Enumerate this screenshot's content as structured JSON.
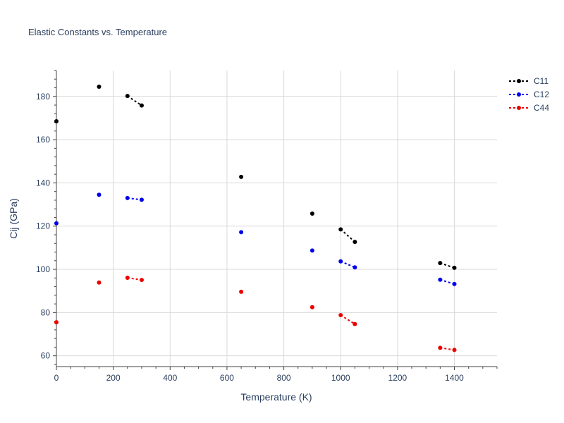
{
  "chart_data": {
    "type": "scatter",
    "title": "Elastic Constants vs. Temperature",
    "xlabel": "Temperature (K)",
    "ylabel": "Cij (GPa)",
    "xlim": [
      0,
      1550
    ],
    "ylim": [
      55,
      192
    ],
    "xticks": [
      0,
      200,
      400,
      600,
      800,
      1000,
      1200,
      1400
    ],
    "yticks": [
      60,
      80,
      100,
      120,
      140,
      160,
      180
    ],
    "grid": true,
    "legend_position": "top-right",
    "series": [
      {
        "name": "C11",
        "color": "#000000",
        "points": [
          [
            0,
            168.5
          ],
          [
            150,
            184.5
          ],
          [
            250,
            180.2
          ],
          [
            300,
            175.8
          ],
          [
            650,
            142.8
          ],
          [
            900,
            125.8
          ],
          [
            1000,
            118.5
          ],
          [
            1050,
            112.7
          ],
          [
            1350,
            102.9
          ],
          [
            1400,
            100.7
          ]
        ],
        "segments": [
          [
            2,
            3
          ],
          [
            6,
            7
          ],
          [
            8,
            9
          ]
        ]
      },
      {
        "name": "C12",
        "color": "#0000ee",
        "points": [
          [
            0,
            121.3
          ],
          [
            150,
            134.5
          ],
          [
            250,
            133.0
          ],
          [
            300,
            132.2
          ],
          [
            650,
            117.2
          ],
          [
            900,
            108.7
          ],
          [
            1000,
            103.7
          ],
          [
            1050,
            100.9
          ],
          [
            1350,
            95.2
          ],
          [
            1400,
            93.2
          ]
        ],
        "segments": [
          [
            2,
            3
          ],
          [
            6,
            7
          ],
          [
            8,
            9
          ]
        ]
      },
      {
        "name": "C44",
        "color": "#ee0000",
        "points": [
          [
            0,
            75.5
          ],
          [
            150,
            93.9
          ],
          [
            250,
            96.1
          ],
          [
            300,
            95.1
          ],
          [
            650,
            89.6
          ],
          [
            900,
            82.5
          ],
          [
            1000,
            78.8
          ],
          [
            1050,
            74.7
          ],
          [
            1350,
            63.7
          ],
          [
            1400,
            62.7
          ]
        ],
        "segments": [
          [
            2,
            3
          ],
          [
            6,
            7
          ],
          [
            8,
            9
          ]
        ]
      }
    ]
  }
}
